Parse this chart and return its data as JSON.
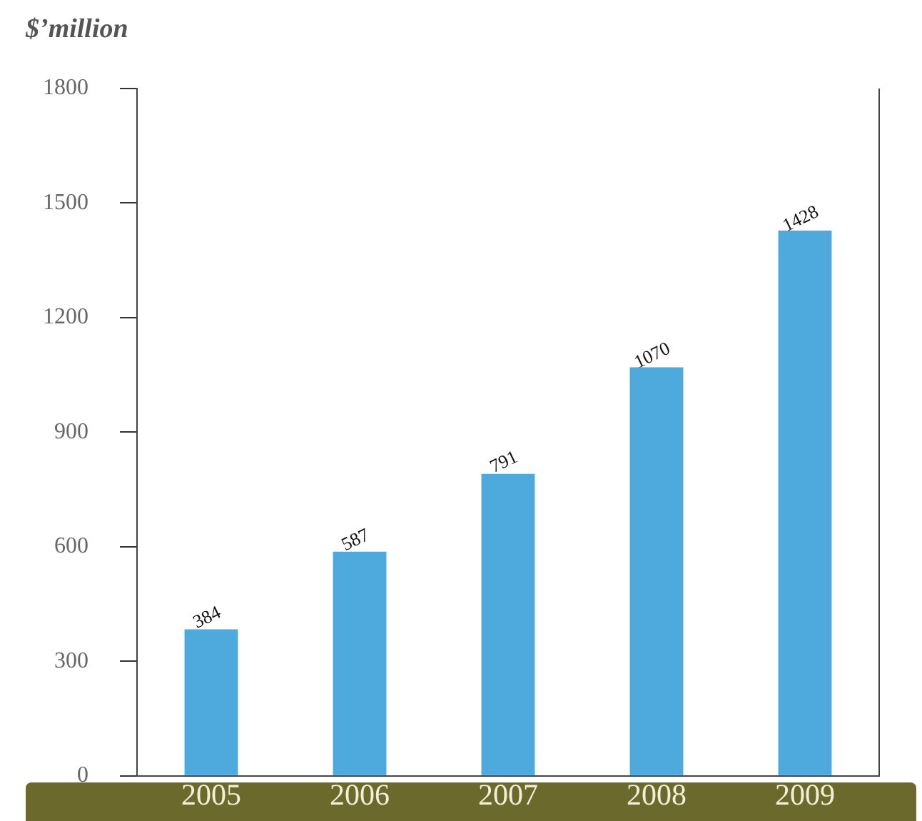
{
  "chart_data": {
    "type": "bar",
    "ylabel": "$’million",
    "categories": [
      "2005",
      "2006",
      "2007",
      "2008",
      "2009"
    ],
    "values": [
      384,
      587,
      791,
      1070,
      1428
    ],
    "color": "#4eaadd",
    "ylim": [
      0,
      1800
    ],
    "yticks": [
      0,
      300,
      600,
      900,
      1200,
      1500,
      1800
    ],
    "data_labels": true,
    "grid": false,
    "legend": false
  }
}
